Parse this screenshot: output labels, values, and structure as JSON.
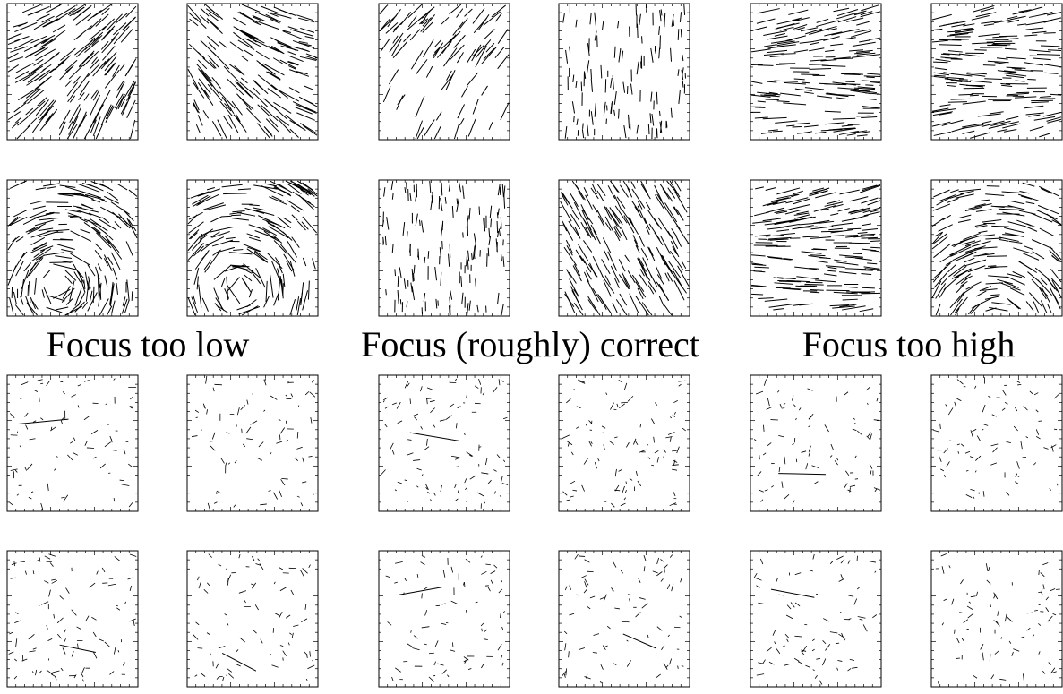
{
  "figure": {
    "captions": [
      "Focus too low",
      "Focus (roughly) correct",
      "Focus too high"
    ],
    "colors": {
      "background": "#ffffff",
      "stroke": "#000000"
    },
    "rows": [
      {
        "row": 1,
        "pattern": "flow",
        "columns": [
          {
            "group": "Focus too low",
            "panels": [
              {
                "style": "dense-arc-cw",
                "density": 1.0
              },
              {
                "style": "dense-arc-ccw",
                "density": 0.9
              }
            ]
          },
          {
            "group": "Focus (roughly) correct",
            "panels": [
              {
                "style": "diagonal-fade",
                "density": 0.7
              },
              {
                "style": "vertical-sparse",
                "density": 0.6
              }
            ]
          },
          {
            "group": "Focus too high",
            "panels": [
              {
                "style": "horizontal-wave",
                "density": 0.9
              },
              {
                "style": "horizontal-wave",
                "density": 0.9
              }
            ]
          }
        ]
      },
      {
        "row": 2,
        "pattern": "flow",
        "columns": [
          {
            "group": "Focus too low",
            "panels": [
              {
                "style": "swirl",
                "density": 1.0
              },
              {
                "style": "swirl",
                "density": 0.9
              }
            ]
          },
          {
            "group": "Focus (roughly) correct",
            "panels": [
              {
                "style": "vertical-sparse",
                "density": 0.7
              },
              {
                "style": "diagonal-dense",
                "density": 1.0
              }
            ]
          },
          {
            "group": "Focus too high",
            "panels": [
              {
                "style": "horizontal-wave",
                "density": 1.0
              },
              {
                "style": "arc",
                "density": 0.9
              }
            ]
          }
        ]
      },
      {
        "row": 3,
        "pattern": "random",
        "columns": [
          {
            "group": "Focus too low",
            "panels": [
              {
                "style": "short-random",
                "density": 0.5
              },
              {
                "style": "short-random",
                "density": 0.5
              }
            ]
          },
          {
            "group": "Focus (roughly) correct",
            "panels": [
              {
                "style": "short-random",
                "density": 0.6
              },
              {
                "style": "short-random",
                "density": 0.6
              }
            ]
          },
          {
            "group": "Focus too high",
            "panels": [
              {
                "style": "short-random",
                "density": 0.5
              },
              {
                "style": "short-random",
                "density": 0.5
              }
            ]
          }
        ]
      },
      {
        "row": 4,
        "pattern": "random",
        "columns": [
          {
            "group": "Focus too low",
            "panels": [
              {
                "style": "short-random",
                "density": 0.6
              },
              {
                "style": "short-random",
                "density": 0.5
              }
            ]
          },
          {
            "group": "Focus (roughly) correct",
            "panels": [
              {
                "style": "short-random",
                "density": 0.5
              },
              {
                "style": "short-random",
                "density": 0.5
              }
            ]
          },
          {
            "group": "Focus too high",
            "panels": [
              {
                "style": "short-random",
                "density": 0.5
              },
              {
                "style": "short-random",
                "density": 0.5
              }
            ]
          }
        ]
      }
    ]
  }
}
